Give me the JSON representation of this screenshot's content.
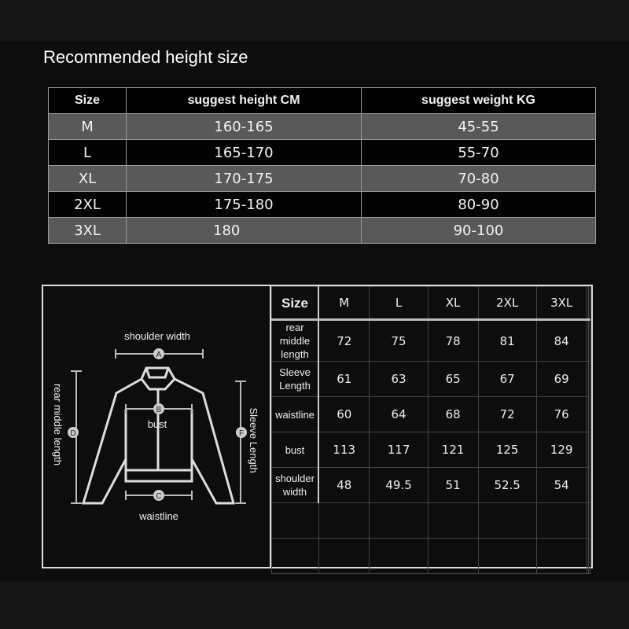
{
  "title": "Recommended height size",
  "height_table": {
    "headers": [
      "Size",
      "suggest height  CM",
      "suggest weight  KG"
    ],
    "rows": [
      [
        "M",
        "160-165",
        "45-55"
      ],
      [
        "L",
        "165-170",
        "55-70"
      ],
      [
        "XL",
        "170-175",
        "70-80"
      ],
      [
        "2XL",
        "175-180",
        "80-90"
      ],
      [
        "3XL",
        "180",
        "90-100"
      ]
    ]
  },
  "diagram": {
    "shoulder_width": "shoulder width",
    "bust": "bust",
    "waistline": "waistline",
    "rear_middle_length": "rear middle length",
    "sleeve_length": "Sleeve Length",
    "markers": {
      "A": "A",
      "B": "B",
      "C": "C",
      "D": "D",
      "F": "F"
    }
  },
  "measure_table": {
    "header": [
      "Size",
      "M",
      "L",
      "XL",
      "2XL",
      "3XL"
    ],
    "rows": [
      {
        "label": [
          "rear",
          "middle",
          "length"
        ],
        "values": [
          "72",
          "75",
          "78",
          "81",
          "84"
        ]
      },
      {
        "label": [
          "Sleeve",
          "Length"
        ],
        "values": [
          "61",
          "63",
          "65",
          "67",
          "69"
        ]
      },
      {
        "label": [
          "waistline"
        ],
        "values": [
          "60",
          "64",
          "68",
          "72",
          "76"
        ]
      },
      {
        "label": [
          "bust"
        ],
        "values": [
          "113",
          "117",
          "121",
          "125",
          "129"
        ]
      },
      {
        "label": [
          "shoulder",
          "width"
        ],
        "values": [
          "48",
          "49.5",
          "51",
          "52.5",
          "54"
        ]
      }
    ]
  }
}
